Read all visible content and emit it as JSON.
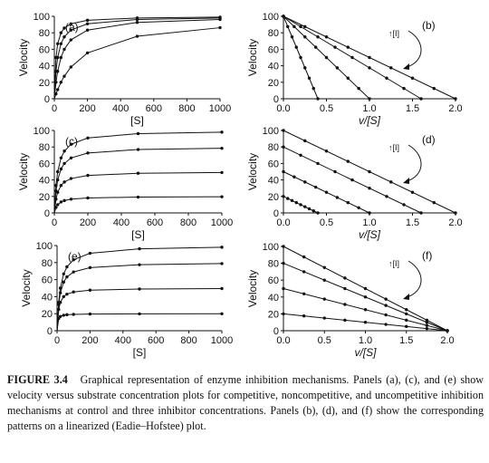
{
  "caption": {
    "label": "FIGURE 3.4",
    "text": "Graphical representation of enzyme inhibition mechanisms. Panels (a), (c), and (e) show velocity versus substrate concentration plots for competitive, noncompetitive, and uncompetitive inhibition mechanisms at control and three inhibitor concentrations. Panels (b), (d), and (f) show the corresponding patterns on a linearized (Eadie–Hofstee) plot."
  },
  "arrow_label": "↑[I]",
  "chart_data": [
    {
      "panel": "(a)",
      "type": "line",
      "xlabel": "[S]",
      "ylabel": "Velocity",
      "xlim": [
        0,
        1000
      ],
      "ylim": [
        0,
        100
      ],
      "xticks": [
        0,
        200,
        400,
        600,
        800,
        1000
      ],
      "yticks": [
        0,
        20,
        40,
        60,
        80,
        100
      ],
      "x": [
        0,
        10,
        20,
        40,
        60,
        100,
        200,
        500,
        1000
      ],
      "series": [
        {
          "values": [
            0,
            50,
            66.7,
            80,
            85.7,
            90.9,
            95.2,
            98,
            99
          ]
        },
        {
          "values": [
            0,
            33.3,
            50,
            66.7,
            75,
            83.3,
            90.9,
            96.2,
            98
          ]
        },
        {
          "values": [
            0,
            20,
            33.3,
            50,
            60,
            71.4,
            83.3,
            92.6,
            96.2
          ]
        },
        {
          "values": [
            0,
            5.9,
            11.1,
            20,
            27.3,
            38.5,
            55.6,
            75.8,
            86.2
          ]
        }
      ]
    },
    {
      "panel": "(b)",
      "type": "line",
      "xlabel": "v/[S]",
      "ylabel": "Velocity",
      "xlim": [
        0,
        2.0
      ],
      "ylim": [
        0,
        100
      ],
      "xticks": [
        0.0,
        0.5,
        1.0,
        1.5,
        2.0
      ],
      "yticks": [
        0,
        20,
        40,
        60,
        80,
        100
      ],
      "series": [
        {
          "x": [
            0,
            2.0
          ],
          "values": [
            100,
            0
          ]
        },
        {
          "x": [
            0,
            1.6
          ],
          "values": [
            100,
            0
          ]
        },
        {
          "x": [
            0,
            1.0
          ],
          "values": [
            100,
            0
          ]
        },
        {
          "x": [
            0,
            0.4
          ],
          "values": [
            100,
            0
          ]
        }
      ]
    },
    {
      "panel": "(c)",
      "type": "line",
      "xlabel": "[S]",
      "ylabel": "Velocity",
      "xlim": [
        0,
        1000
      ],
      "ylim": [
        0,
        100
      ],
      "xticks": [
        0,
        200,
        400,
        600,
        800,
        1000
      ],
      "yticks": [
        0,
        20,
        40,
        60,
        80,
        100
      ],
      "x": [
        0,
        10,
        20,
        40,
        60,
        100,
        200,
        500,
        1000
      ],
      "series": [
        {
          "values": [
            0,
            33.3,
            50,
            66.7,
            75,
            83.3,
            90.9,
            96.2,
            98
          ]
        },
        {
          "values": [
            0,
            26.7,
            40,
            53.3,
            60,
            66.7,
            72.7,
            76.9,
            78.4
          ]
        },
        {
          "values": [
            0,
            16.7,
            25,
            33.3,
            37.5,
            41.7,
            45.5,
            48.1,
            49
          ]
        },
        {
          "values": [
            0,
            6.7,
            10,
            13.3,
            15,
            16.7,
            18.2,
            19.2,
            19.6
          ]
        }
      ]
    },
    {
      "panel": "(d)",
      "type": "line",
      "xlabel": "v/[S]",
      "ylabel": "Velocity",
      "xlim": [
        0,
        2.0
      ],
      "ylim": [
        0,
        100
      ],
      "xticks": [
        0.0,
        0.5,
        1.0,
        1.5,
        2.0
      ],
      "yticks": [
        0,
        20,
        40,
        60,
        80,
        100
      ],
      "series": [
        {
          "x": [
            0,
            2.0
          ],
          "values": [
            100,
            0
          ]
        },
        {
          "x": [
            0,
            1.6
          ],
          "values": [
            80,
            0
          ]
        },
        {
          "x": [
            0,
            1.0
          ],
          "values": [
            50,
            0
          ]
        },
        {
          "x": [
            0,
            0.4
          ],
          "values": [
            20,
            0
          ]
        }
      ]
    },
    {
      "panel": "(e)",
      "type": "line",
      "xlabel": "[S]",
      "ylabel": "Velocity",
      "xlim": [
        0,
        1000
      ],
      "ylim": [
        0,
        100
      ],
      "xticks": [
        0,
        200,
        400,
        600,
        800,
        1000
      ],
      "yticks": [
        0,
        20,
        40,
        60,
        80,
        100
      ],
      "x": [
        0,
        10,
        20,
        40,
        60,
        100,
        200,
        500,
        1000
      ],
      "series": [
        {
          "values": [
            0,
            33.3,
            50,
            66.7,
            75,
            83.3,
            90.9,
            96.2,
            98
          ]
        },
        {
          "values": [
            0,
            30.8,
            44.4,
            57.1,
            63.2,
            69,
            74.1,
            77.5,
            78.8
          ]
        },
        {
          "values": [
            0,
            25,
            33.3,
            40,
            42.9,
            45.5,
            47.6,
            49,
            49.5
          ]
        },
        {
          "values": [
            0,
            14.3,
            16.7,
            18.2,
            18.8,
            19.2,
            19.6,
            19.8,
            19.9
          ]
        }
      ]
    },
    {
      "panel": "(f)",
      "type": "line",
      "xlabel": "v/[S]",
      "ylabel": "Velocity",
      "xlim": [
        0,
        2.0
      ],
      "ylim": [
        0,
        100
      ],
      "xticks": [
        0.0,
        0.5,
        1.0,
        1.5,
        2.0
      ],
      "yticks": [
        0,
        20,
        40,
        60,
        80,
        100
      ],
      "series": [
        {
          "x": [
            0,
            2.0
          ],
          "values": [
            100,
            0
          ]
        },
        {
          "x": [
            0,
            2.0
          ],
          "values": [
            80,
            0
          ]
        },
        {
          "x": [
            0,
            2.0
          ],
          "values": [
            50,
            0
          ]
        },
        {
          "x": [
            0,
            2.0
          ],
          "values": [
            20,
            0
          ]
        }
      ]
    }
  ]
}
